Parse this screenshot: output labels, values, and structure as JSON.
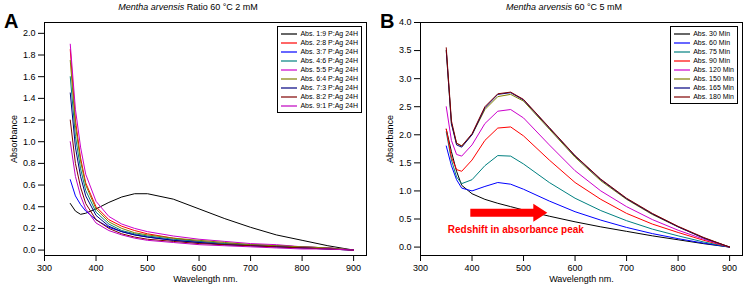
{
  "chart_data": [
    {
      "type": "line",
      "panel": "A",
      "title": "Mentha arvensis Ratio 60 °C 2 mM",
      "x_label": "Wavelength nm.",
      "y_label": "Absorbance",
      "x": [
        350,
        360,
        370,
        380,
        400,
        425,
        450,
        475,
        500,
        550,
        600,
        650,
        700,
        750,
        800,
        850,
        900
      ],
      "xlim": [
        300,
        925
      ],
      "xticks": [
        300,
        400,
        500,
        600,
        700,
        800,
        900
      ],
      "ylim": [
        -0.05,
        2.1
      ],
      "yticks": [
        {
          "value": 0,
          "label": "0.0"
        },
        0.2,
        0.4,
        0.6,
        0.8,
        {
          "value": 1,
          "label": "1.0"
        },
        1.2,
        1.4,
        1.6,
        1.8,
        {
          "value": 2,
          "label": "2.0"
        }
      ],
      "legend": "top-right",
      "series": [
        {
          "name": "Abs. 1:9 P:Ag 24H",
          "color": "#000000",
          "values": [
            0.43,
            0.36,
            0.33,
            0.34,
            0.38,
            0.44,
            0.49,
            0.52,
            0.52,
            0.47,
            0.38,
            0.29,
            0.21,
            0.14,
            0.09,
            0.04,
            0.0
          ]
        },
        {
          "name": "Abs. 2:8 P:Ag 24H",
          "color": "#ff0000",
          "values": [
            1.85,
            1.2,
            0.85,
            0.62,
            0.4,
            0.28,
            0.22,
            0.18,
            0.15,
            0.11,
            0.08,
            0.06,
            0.05,
            0.04,
            0.03,
            0.02,
            0.0
          ]
        },
        {
          "name": "Abs. 3:7 P:Ag 24H",
          "color": "#0000ff",
          "values": [
            0.65,
            0.5,
            0.42,
            0.36,
            0.28,
            0.21,
            0.17,
            0.14,
            0.12,
            0.09,
            0.07,
            0.05,
            0.04,
            0.03,
            0.02,
            0.01,
            0.0
          ]
        },
        {
          "name": "Abs. 4:6 P:Ag 24H",
          "color": "#008080",
          "values": [
            1.6,
            1.05,
            0.75,
            0.55,
            0.35,
            0.24,
            0.18,
            0.15,
            0.13,
            0.1,
            0.08,
            0.06,
            0.05,
            0.04,
            0.03,
            0.02,
            0.0
          ]
        },
        {
          "name": "Abs. 5:5 P:Ag 24H",
          "color": "#cc00cc",
          "values": [
            1.9,
            1.3,
            0.95,
            0.7,
            0.45,
            0.31,
            0.24,
            0.2,
            0.17,
            0.13,
            0.1,
            0.08,
            0.06,
            0.05,
            0.03,
            0.02,
            0.0
          ]
        },
        {
          "name": "Abs. 6:4 P:Ag 24H",
          "color": "#808000",
          "values": [
            1.75,
            1.15,
            0.82,
            0.6,
            0.38,
            0.26,
            0.2,
            0.16,
            0.14,
            0.11,
            0.09,
            0.07,
            0.05,
            0.04,
            0.03,
            0.02,
            0.0
          ]
        },
        {
          "name": "Abs. 7:3 P:Ag 24H",
          "color": "#000080",
          "values": [
            1.45,
            0.95,
            0.68,
            0.5,
            0.32,
            0.22,
            0.17,
            0.14,
            0.12,
            0.09,
            0.07,
            0.05,
            0.04,
            0.03,
            0.02,
            0.01,
            0.0
          ]
        },
        {
          "name": "Abs. 8:2 P:Ag 24H",
          "color": "#800000",
          "values": [
            1.2,
            0.8,
            0.58,
            0.43,
            0.28,
            0.2,
            0.15,
            0.12,
            0.1,
            0.08,
            0.06,
            0.05,
            0.04,
            0.03,
            0.02,
            0.01,
            0.0
          ]
        },
        {
          "name": "Abs. 9:1 P:Ag 24H",
          "color": "#c000c0",
          "values": [
            1.0,
            0.68,
            0.5,
            0.38,
            0.25,
            0.18,
            0.14,
            0.11,
            0.09,
            0.07,
            0.05,
            0.04,
            0.03,
            0.02,
            0.01,
            0.01,
            0.0
          ]
        }
      ]
    },
    {
      "type": "line",
      "panel": "B",
      "title": "Mentha arvensis 60 °C 5 mM",
      "x_label": "Wavelength nm.",
      "y_label": "Absorbance",
      "x": [
        350,
        360,
        370,
        380,
        400,
        425,
        450,
        475,
        500,
        550,
        600,
        650,
        700,
        750,
        800,
        850,
        900
      ],
      "xlim": [
        300,
        925
      ],
      "xticks": [
        300,
        400,
        500,
        600,
        700,
        800,
        900
      ],
      "ylim": [
        -0.15,
        4.0
      ],
      "yticks": [
        {
          "value": 0,
          "label": "0.0"
        },
        0.5,
        {
          "value": 1,
          "label": "1.0"
        },
        1.5,
        {
          "value": 2,
          "label": "2.0"
        },
        2.5,
        {
          "value": 3,
          "label": "3.0"
        },
        3.5,
        {
          "value": 4,
          "label": "4.0"
        }
      ],
      "legend": "top-right",
      "annotations": [
        {
          "text": "Redshift in absorbance peak",
          "x": 485,
          "y": 0.3,
          "color": "#ff0000"
        }
      ],
      "series": [
        {
          "name": "Abs. 30 Min",
          "color": "#000000",
          "values": [
            2.1,
            1.7,
            1.35,
            1.1,
            0.95,
            0.85,
            0.78,
            0.72,
            0.66,
            0.55,
            0.45,
            0.36,
            0.28,
            0.2,
            0.13,
            0.06,
            0.0
          ]
        },
        {
          "name": "Abs. 60 Min",
          "color": "#0000ff",
          "values": [
            1.8,
            1.45,
            1.2,
            1.05,
            1.0,
            1.08,
            1.15,
            1.12,
            1.03,
            0.82,
            0.63,
            0.48,
            0.35,
            0.24,
            0.15,
            0.07,
            0.0
          ]
        },
        {
          "name": "Abs. 75 Min",
          "color": "#008080",
          "values": [
            2.05,
            1.55,
            1.25,
            1.13,
            1.2,
            1.45,
            1.63,
            1.62,
            1.48,
            1.15,
            0.87,
            0.65,
            0.47,
            0.32,
            0.2,
            0.09,
            0.0
          ]
        },
        {
          "name": "Abs. 90 Min",
          "color": "#ff0000",
          "values": [
            2.1,
            1.6,
            1.38,
            1.35,
            1.55,
            1.9,
            2.12,
            2.14,
            1.98,
            1.55,
            1.15,
            0.85,
            0.6,
            0.41,
            0.26,
            0.12,
            0.0
          ]
        },
        {
          "name": "Abs. 120 Min",
          "color": "#cc00cc",
          "values": [
            2.5,
            1.9,
            1.65,
            1.62,
            1.82,
            2.2,
            2.42,
            2.45,
            2.3,
            1.82,
            1.36,
            1.0,
            0.72,
            0.49,
            0.3,
            0.14,
            0.0
          ]
        },
        {
          "name": "Abs. 150 Min",
          "color": "#808000",
          "values": [
            3.5,
            2.2,
            1.85,
            1.8,
            2.0,
            2.45,
            2.68,
            2.72,
            2.6,
            2.1,
            1.6,
            1.18,
            0.85,
            0.58,
            0.36,
            0.16,
            0.0
          ]
        },
        {
          "name": "Abs. 165 Min",
          "color": "#000080",
          "values": [
            3.5,
            2.2,
            1.82,
            1.78,
            2.0,
            2.48,
            2.72,
            2.75,
            2.62,
            2.12,
            1.62,
            1.2,
            0.86,
            0.59,
            0.36,
            0.16,
            0.0
          ]
        },
        {
          "name": "Abs. 180 Min",
          "color": "#800000",
          "values": [
            3.55,
            2.25,
            1.85,
            1.8,
            2.02,
            2.5,
            2.73,
            2.76,
            2.63,
            2.13,
            1.63,
            1.21,
            0.87,
            0.6,
            0.37,
            0.17,
            0.0
          ]
        }
      ]
    }
  ]
}
